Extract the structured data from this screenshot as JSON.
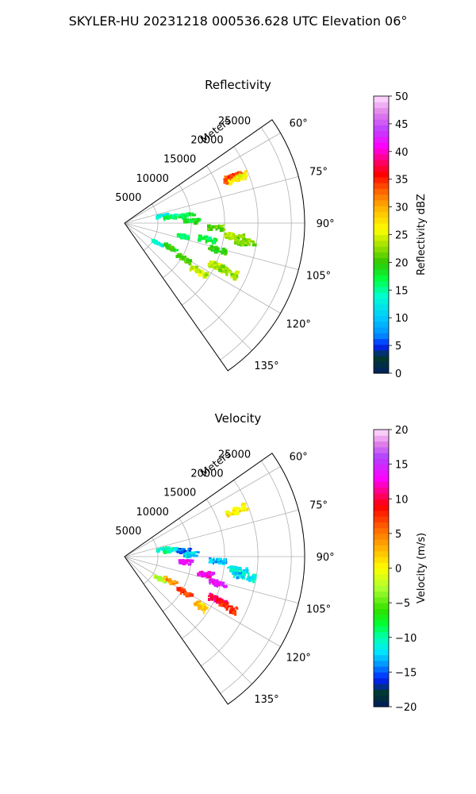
{
  "suptitle": "SKYLER-HU  20231218  000536.628 UTC Elevation 06°",
  "chart_data": [
    {
      "type": "heatmap",
      "title": "Reflectivity",
      "radial_label": "Meters",
      "radial_ticks": [
        5000,
        10000,
        15000,
        20000,
        25000
      ],
      "radial_tick_labels": [
        "5000",
        "10000",
        "15000",
        "20000",
        "25000"
      ],
      "azimuth_range_deg": [
        55,
        145
      ],
      "azimuth_ticks": [
        60,
        75,
        90,
        105,
        120,
        135
      ],
      "azimuth_tick_labels": [
        "60°",
        "75°",
        "90°",
        "105°",
        "120°",
        "135°"
      ],
      "grid": true,
      "colorbar": {
        "label": "Reflectivity dBZ",
        "range": [
          0,
          50
        ],
        "ticks": [
          0,
          5,
          10,
          15,
          20,
          25,
          30,
          35,
          40,
          45,
          50
        ],
        "tick_labels": [
          "0",
          "5",
          "10",
          "15",
          "20",
          "25",
          "30",
          "35",
          "40",
          "45",
          "50"
        ],
        "stops": [
          [
            0,
            "#002060"
          ],
          [
            3,
            "#003a2a"
          ],
          [
            5,
            "#0020ff"
          ],
          [
            7,
            "#0090ff"
          ],
          [
            10,
            "#00c8ff"
          ],
          [
            14,
            "#00ffd0"
          ],
          [
            17,
            "#00ff40"
          ],
          [
            20,
            "#30c800"
          ],
          [
            23,
            "#a0e000"
          ],
          [
            26,
            "#ffff00"
          ],
          [
            30,
            "#ffb000"
          ],
          [
            33,
            "#ff6000"
          ],
          [
            36,
            "#ff0000"
          ],
          [
            38,
            "#ff0060"
          ],
          [
            41,
            "#ff00ff"
          ],
          [
            44,
            "#c040ff"
          ],
          [
            47,
            "#e080e8"
          ],
          [
            50,
            "#ffe0ff"
          ]
        ]
      },
      "echoes": [
        {
          "range_m": 17600,
          "azimuth_deg": 67,
          "value": 34
        },
        {
          "range_m": 18400,
          "azimuth_deg": 68.5,
          "value": 26
        },
        {
          "range_m": 5800,
          "azimuth_deg": 79,
          "value": 13
        },
        {
          "range_m": 6900,
          "azimuth_deg": 82,
          "value": 16
        },
        {
          "range_m": 9300,
          "azimuth_deg": 83,
          "value": 17
        },
        {
          "range_m": 10100,
          "azimuth_deg": 88,
          "value": 18
        },
        {
          "range_m": 13900,
          "azimuth_deg": 93,
          "value": 21
        },
        {
          "range_m": 16600,
          "azimuth_deg": 97,
          "value": 23
        },
        {
          "range_m": 18200,
          "azimuth_deg": 99,
          "value": 22
        },
        {
          "range_m": 12600,
          "azimuth_deg": 101,
          "value": 17
        },
        {
          "range_m": 9100,
          "azimuth_deg": 103,
          "value": 16
        },
        {
          "range_m": 14600,
          "azimuth_deg": 106,
          "value": 19
        },
        {
          "range_m": 5800,
          "azimuth_deg": 121,
          "value": 13
        },
        {
          "range_m": 7800,
          "azimuth_deg": 118,
          "value": 19
        },
        {
          "range_m": 10400,
          "azimuth_deg": 121,
          "value": 21
        },
        {
          "range_m": 13300,
          "azimuth_deg": 123,
          "value": 24
        },
        {
          "range_m": 15400,
          "azimuth_deg": 115,
          "value": 24
        },
        {
          "range_m": 17300,
          "azimuth_deg": 115,
          "value": 23
        }
      ]
    },
    {
      "type": "heatmap",
      "title": "Velocity",
      "radial_label": "Meters",
      "radial_ticks": [
        5000,
        10000,
        15000,
        20000,
        25000
      ],
      "radial_tick_labels": [
        "5000",
        "10000",
        "15000",
        "20000",
        "25000"
      ],
      "azimuth_range_deg": [
        55,
        145
      ],
      "azimuth_ticks": [
        60,
        75,
        90,
        105,
        120,
        135
      ],
      "azimuth_tick_labels": [
        "60°",
        "75°",
        "90°",
        "105°",
        "120°",
        "135°"
      ],
      "grid": true,
      "colorbar": {
        "label": "Velocity (m/s)",
        "range": [
          -20,
          20
        ],
        "ticks": [
          -20,
          -15,
          -10,
          -5,
          0,
          5,
          10,
          15,
          20
        ],
        "tick_labels": [
          "−20",
          "−15",
          "−10",
          "−5",
          "0",
          "5",
          "10",
          "15",
          "20"
        ],
        "stops": [
          [
            -20,
            "#001a60"
          ],
          [
            -18,
            "#003a2a"
          ],
          [
            -16,
            "#0020ff"
          ],
          [
            -14,
            "#0090ff"
          ],
          [
            -12,
            "#00e8ff"
          ],
          [
            -10,
            "#00ffb0"
          ],
          [
            -8,
            "#00ff30"
          ],
          [
            -6,
            "#30e000"
          ],
          [
            -3,
            "#a8ff30"
          ],
          [
            0,
            "#ffff00"
          ],
          [
            3,
            "#ffb000"
          ],
          [
            6,
            "#ff6000"
          ],
          [
            9,
            "#ff0000"
          ],
          [
            11,
            "#ff0080"
          ],
          [
            13,
            "#ff00ff"
          ],
          [
            16,
            "#b040ff"
          ],
          [
            18,
            "#e080e8"
          ],
          [
            20,
            "#ffe0ff"
          ]
        ]
      },
      "echoes": [
        {
          "range_m": 18100,
          "azimuth_deg": 67.5,
          "value": 1
        },
        {
          "range_m": 5800,
          "azimuth_deg": 79,
          "value": -11
        },
        {
          "range_m": 6900,
          "azimuth_deg": 82,
          "value": -10
        },
        {
          "range_m": 9000,
          "azimuth_deg": 84,
          "value": -15
        },
        {
          "range_m": 10100,
          "azimuth_deg": 88,
          "value": -12
        },
        {
          "range_m": 9300,
          "azimuth_deg": 95,
          "value": 14
        },
        {
          "range_m": 14100,
          "azimuth_deg": 93,
          "value": -13
        },
        {
          "range_m": 17000,
          "azimuth_deg": 97,
          "value": -11
        },
        {
          "range_m": 18200,
          "azimuth_deg": 99,
          "value": -12
        },
        {
          "range_m": 12300,
          "azimuth_deg": 102,
          "value": 13
        },
        {
          "range_m": 14600,
          "azimuth_deg": 106,
          "value": 14
        },
        {
          "range_m": 6300,
          "azimuth_deg": 122,
          "value": -3
        },
        {
          "range_m": 7800,
          "azimuth_deg": 118,
          "value": 4
        },
        {
          "range_m": 10400,
          "azimuth_deg": 121,
          "value": 7
        },
        {
          "range_m": 13300,
          "azimuth_deg": 123,
          "value": 2
        },
        {
          "range_m": 15400,
          "azimuth_deg": 115,
          "value": 11
        },
        {
          "range_m": 17300,
          "azimuth_deg": 116,
          "value": 8
        }
      ]
    }
  ]
}
